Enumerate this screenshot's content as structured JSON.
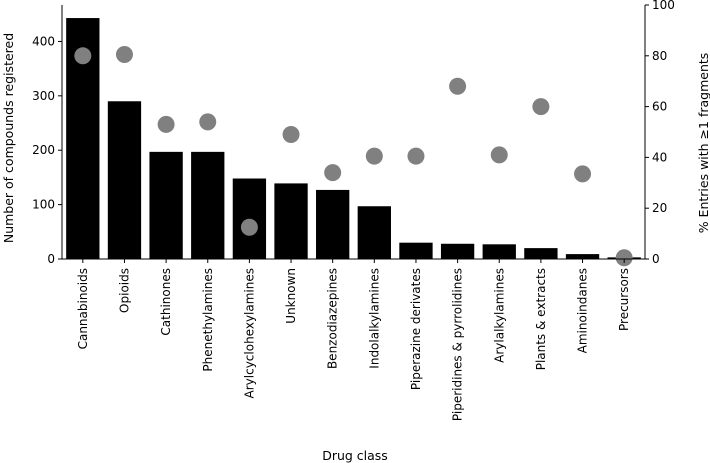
{
  "chart_data": {
    "type": "bar",
    "xlabel": "Drug class",
    "ylabel": "Number of compounds registered",
    "y2label": "% Entries with ≥1 fragments",
    "ylim": [
      0,
      467
    ],
    "y2lim": [
      0,
      100
    ],
    "yticks": [
      "0",
      "100",
      "200",
      "300",
      "400"
    ],
    "y2ticks": [
      "0",
      "20",
      "40",
      "60",
      "80",
      "100"
    ],
    "grid": false,
    "bar_color": "#000000",
    "point_color": "#808080",
    "categories": [
      "Cannabinoids",
      "Opioids",
      "Cathinones",
      "Phenethylamines",
      "Arylcyclohexylamines",
      "Unknown",
      "Benzodiazepines",
      "Indolalkylamines",
      "Piperazine derivates",
      "Piperidines & pyrrolidines",
      "Arylalkylamines",
      "Plants & extracts",
      "Aminoindanes",
      "Precursors"
    ],
    "series": [
      {
        "axis": "left",
        "kind": "bar",
        "values": [
          443,
          290,
          197,
          197,
          148,
          139,
          127,
          97,
          30,
          28,
          27,
          20,
          9,
          3
        ]
      },
      {
        "axis": "right",
        "kind": "scatter",
        "values": [
          80,
          80.5,
          53,
          54,
          12.5,
          49,
          34,
          40.5,
          40.5,
          68,
          41,
          60,
          33.5,
          0.5
        ]
      }
    ]
  }
}
